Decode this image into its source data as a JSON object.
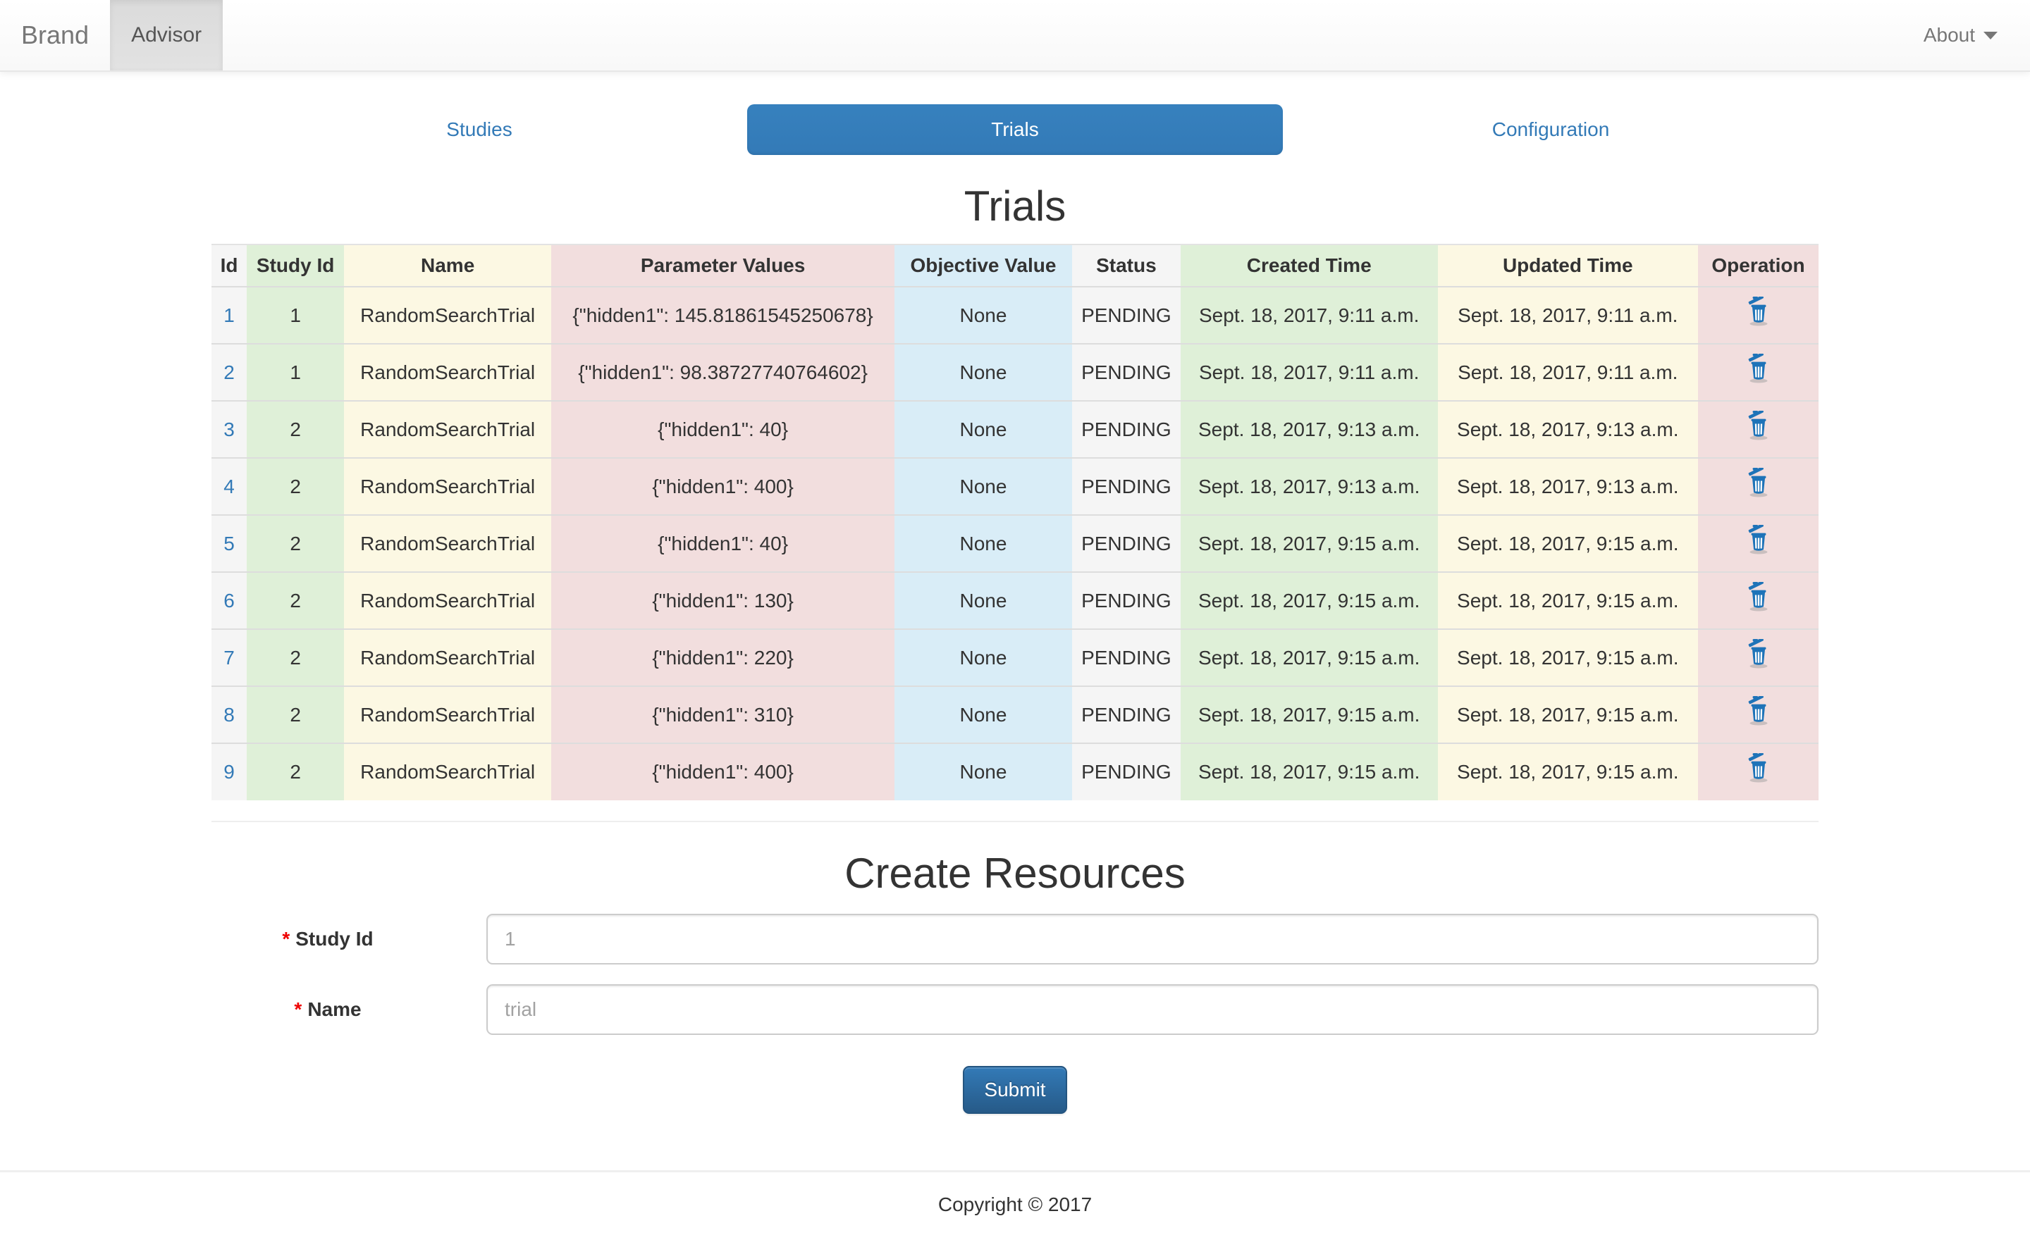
{
  "navbar": {
    "brand": "Brand",
    "active_item": "Advisor",
    "about_label": "About",
    "about_caret_icon": "caret-down-icon"
  },
  "tabs": [
    {
      "label": "Studies",
      "active": false
    },
    {
      "label": "Trials",
      "active": true
    },
    {
      "label": "Configuration",
      "active": false
    }
  ],
  "table": {
    "title": "Trials",
    "columns": [
      {
        "label": "Id",
        "key": "id",
        "tone": "active"
      },
      {
        "label": "Study Id",
        "key": "study_id",
        "tone": "success"
      },
      {
        "label": "Name",
        "key": "name",
        "tone": "warning"
      },
      {
        "label": "Parameter Values",
        "key": "parameters",
        "tone": "danger"
      },
      {
        "label": "Objective Value",
        "key": "objective",
        "tone": "info"
      },
      {
        "label": "Status",
        "key": "status",
        "tone": "active"
      },
      {
        "label": "Created Time",
        "key": "created",
        "tone": "success"
      },
      {
        "label": "Updated Time",
        "key": "updated",
        "tone": "warning"
      },
      {
        "label": "Operation",
        "key": "operation",
        "tone": "danger"
      }
    ],
    "operation_icon": "trash-icon",
    "rows": [
      {
        "id": "1",
        "study_id": "1",
        "name": "RandomSearchTrial",
        "parameters": "{\"hidden1\": 145.81861545250678}",
        "objective": "None",
        "status": "PENDING",
        "created": "Sept. 18, 2017, 9:11 a.m.",
        "updated": "Sept. 18, 2017, 9:11 a.m."
      },
      {
        "id": "2",
        "study_id": "1",
        "name": "RandomSearchTrial",
        "parameters": "{\"hidden1\": 98.38727740764602}",
        "objective": "None",
        "status": "PENDING",
        "created": "Sept. 18, 2017, 9:11 a.m.",
        "updated": "Sept. 18, 2017, 9:11 a.m."
      },
      {
        "id": "3",
        "study_id": "2",
        "name": "RandomSearchTrial",
        "parameters": "{\"hidden1\": 40}",
        "objective": "None",
        "status": "PENDING",
        "created": "Sept. 18, 2017, 9:13 a.m.",
        "updated": "Sept. 18, 2017, 9:13 a.m."
      },
      {
        "id": "4",
        "study_id": "2",
        "name": "RandomSearchTrial",
        "parameters": "{\"hidden1\": 400}",
        "objective": "None",
        "status": "PENDING",
        "created": "Sept. 18, 2017, 9:13 a.m.",
        "updated": "Sept. 18, 2017, 9:13 a.m."
      },
      {
        "id": "5",
        "study_id": "2",
        "name": "RandomSearchTrial",
        "parameters": "{\"hidden1\": 40}",
        "objective": "None",
        "status": "PENDING",
        "created": "Sept. 18, 2017, 9:15 a.m.",
        "updated": "Sept. 18, 2017, 9:15 a.m."
      },
      {
        "id": "6",
        "study_id": "2",
        "name": "RandomSearchTrial",
        "parameters": "{\"hidden1\": 130}",
        "objective": "None",
        "status": "PENDING",
        "created": "Sept. 18, 2017, 9:15 a.m.",
        "updated": "Sept. 18, 2017, 9:15 a.m."
      },
      {
        "id": "7",
        "study_id": "2",
        "name": "RandomSearchTrial",
        "parameters": "{\"hidden1\": 220}",
        "objective": "None",
        "status": "PENDING",
        "created": "Sept. 18, 2017, 9:15 a.m.",
        "updated": "Sept. 18, 2017, 9:15 a.m."
      },
      {
        "id": "8",
        "study_id": "2",
        "name": "RandomSearchTrial",
        "parameters": "{\"hidden1\": 310}",
        "objective": "None",
        "status": "PENDING",
        "created": "Sept. 18, 2017, 9:15 a.m.",
        "updated": "Sept. 18, 2017, 9:15 a.m."
      },
      {
        "id": "9",
        "study_id": "2",
        "name": "RandomSearchTrial",
        "parameters": "{\"hidden1\": 400}",
        "objective": "None",
        "status": "PENDING",
        "created": "Sept. 18, 2017, 9:15 a.m.",
        "updated": "Sept. 18, 2017, 9:15 a.m."
      }
    ]
  },
  "form": {
    "title": "Create Resources",
    "required_marker": "*",
    "fields": [
      {
        "label": "Study Id",
        "placeholder": "1"
      },
      {
        "label": "Name",
        "placeholder": "trial"
      }
    ],
    "submit_label": "Submit"
  },
  "footer": {
    "text": "Copyright © 2017"
  },
  "colors": {
    "accent_blue": "#337ab7",
    "button_gradient_bottom": "#265a88",
    "navbar_active_gray": "#e2e2e2",
    "tone_active": "#f5f5f5",
    "tone_success": "#dff0d8",
    "tone_warning": "#fcf8e3",
    "tone_danger": "#f2dede",
    "tone_info": "#d9edf7",
    "required_red": "#ee0000",
    "trash_icon_blue": "#1e73b8"
  }
}
